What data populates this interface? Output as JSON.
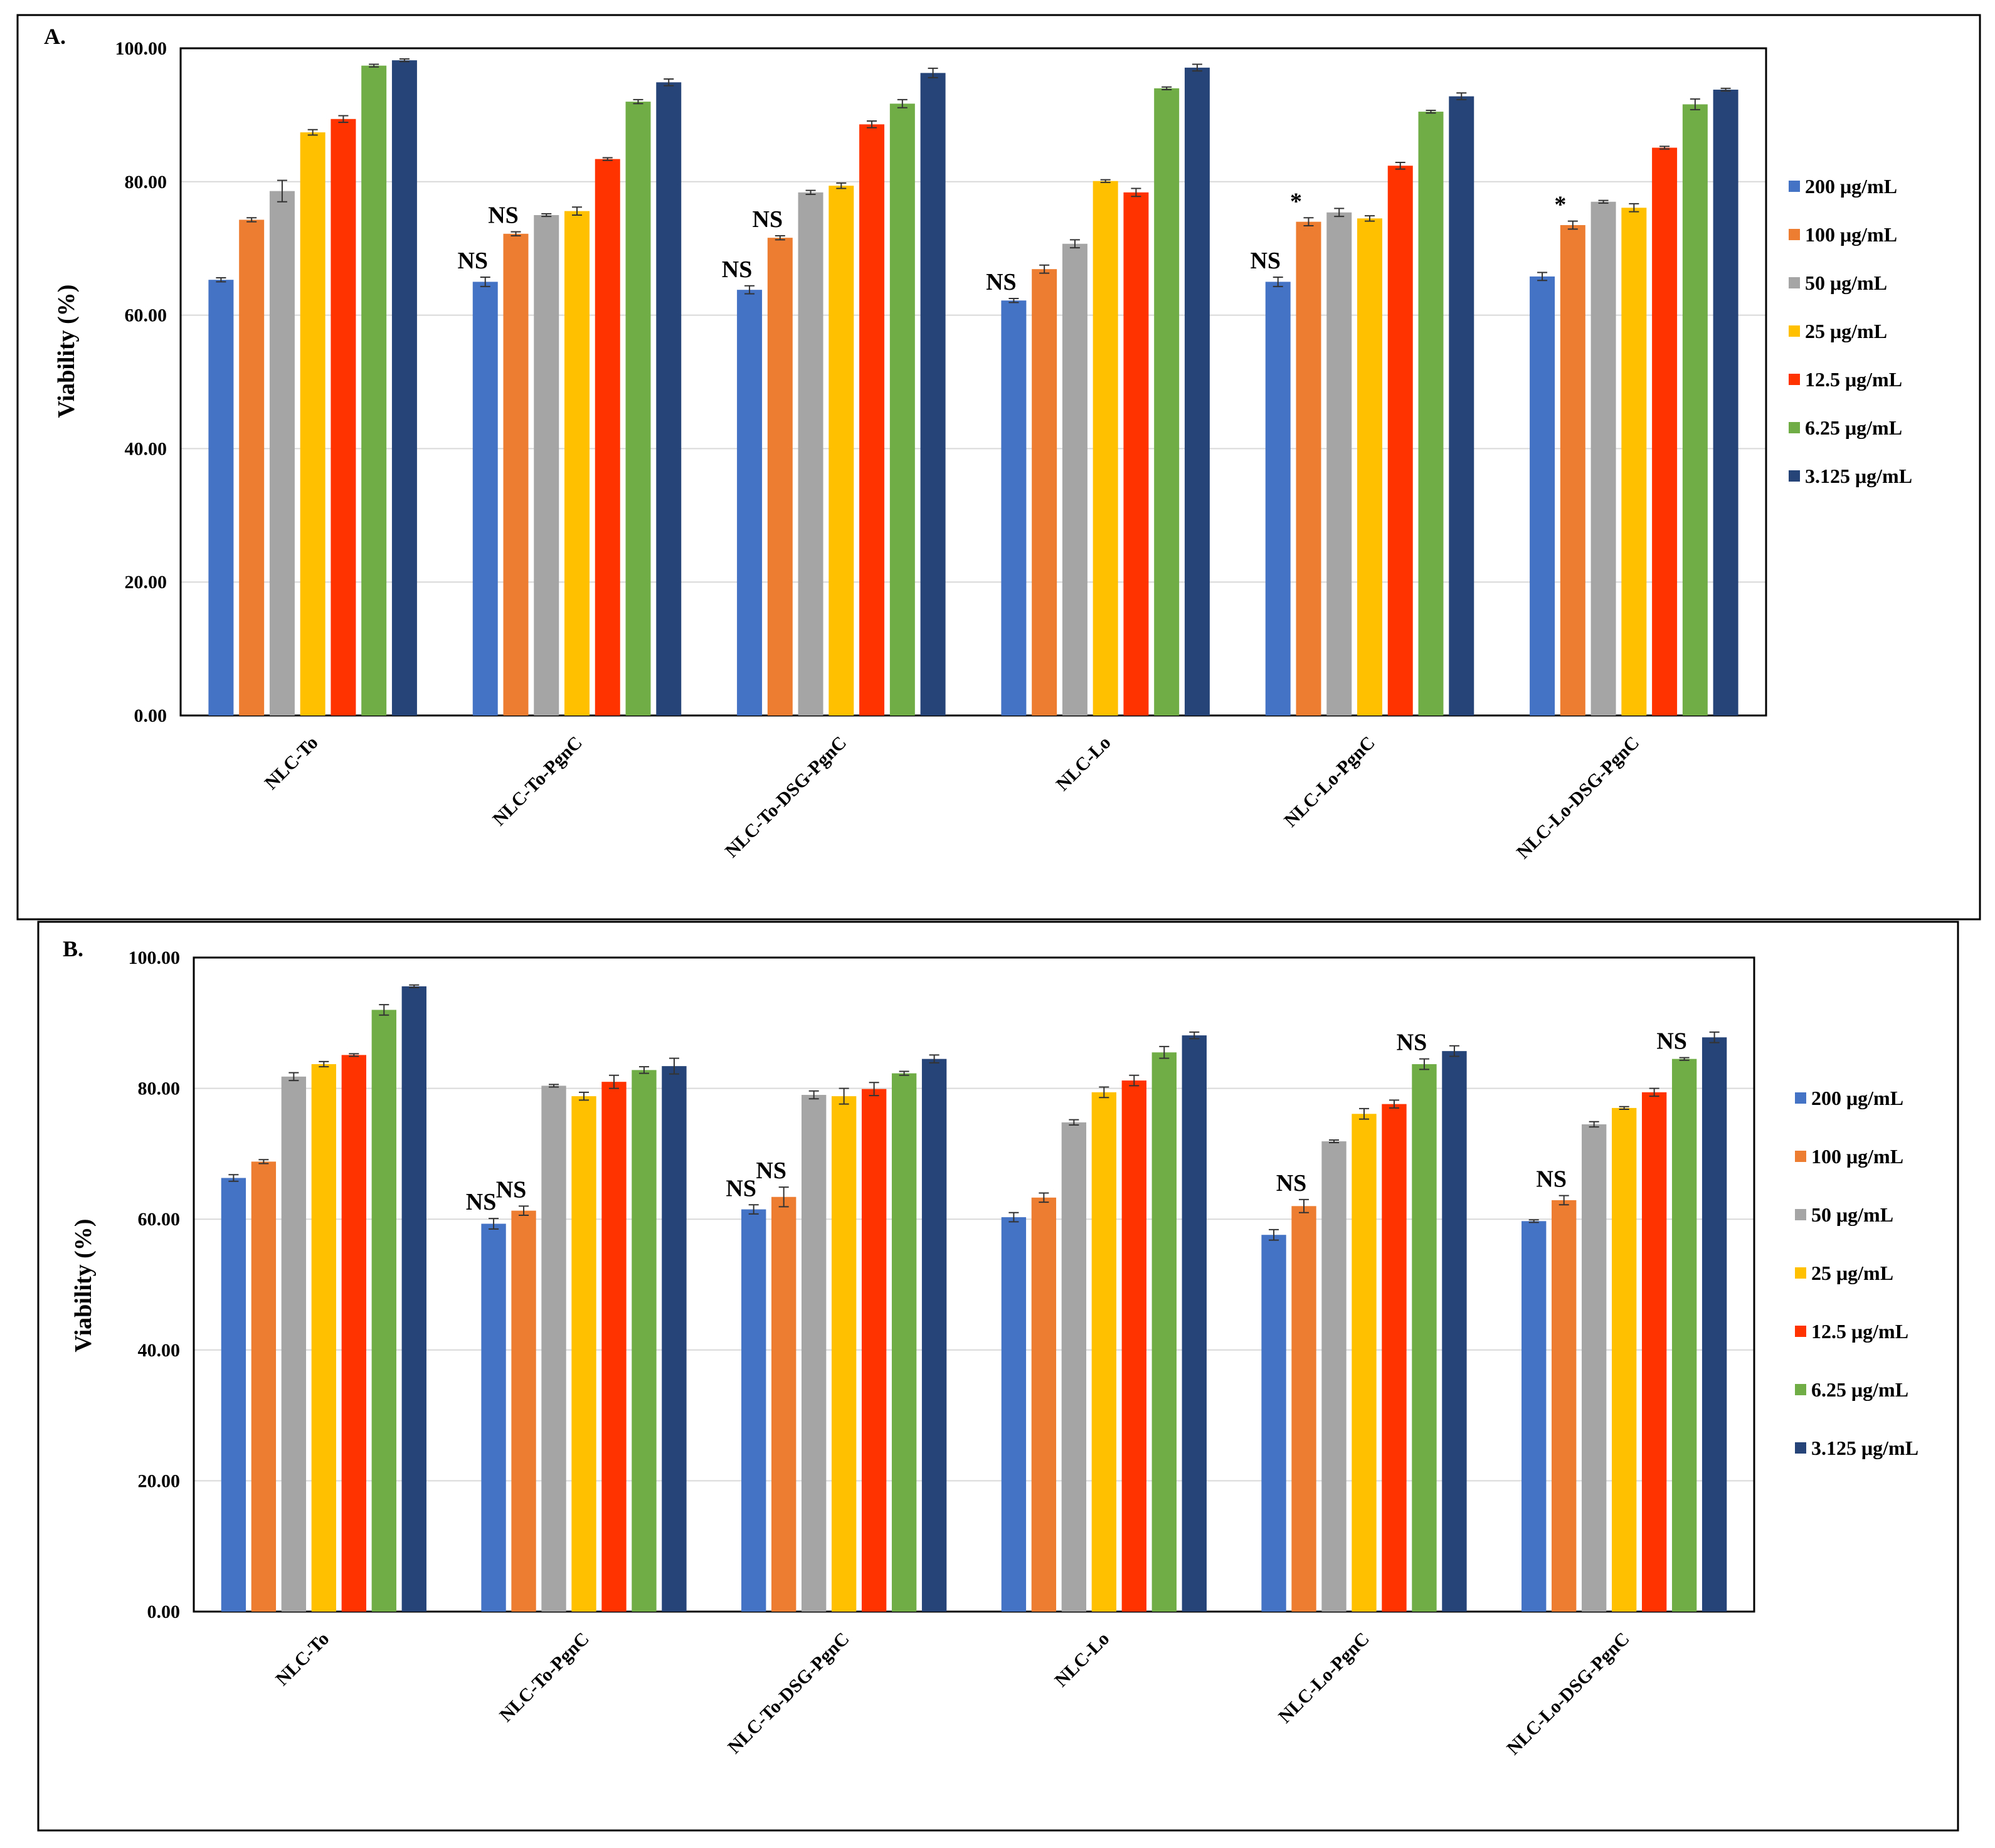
{
  "chart_data": [
    {
      "type": "bar",
      "panel_label": "A.",
      "ylabel": "Viability (%)",
      "categories": [
        "NLC-To",
        "NLC-To-PgnC",
        "NLC-To-DSG-PgnC",
        "NLC-Lo",
        "NLC-Lo-PgnC",
        "NLC-Lo-DSG-PgnC"
      ],
      "ylim": [
        0,
        100
      ],
      "yticks": [
        {
          "value": 0,
          "label": "0.00"
        },
        {
          "value": 20,
          "label": "20.00"
        },
        {
          "value": 40,
          "label": "40.00"
        },
        {
          "value": 60,
          "label": "60.00"
        },
        {
          "value": 80,
          "label": "80.00"
        },
        {
          "value": 100,
          "label": "100.00"
        }
      ],
      "grid": true,
      "legend": "right",
      "series": [
        {
          "name": "200 μg/mL",
          "color": "#4472c4",
          "values": [
            65.3,
            65.0,
            63.8,
            62.2,
            65.0,
            65.8
          ],
          "errors": [
            0.3,
            0.7,
            0.6,
            0.3,
            0.7,
            0.6
          ],
          "annotations": [
            null,
            "NS",
            "NS",
            "NS",
            "NS",
            null
          ]
        },
        {
          "name": "100 μg/mL",
          "color": "#ed7d31",
          "values": [
            74.3,
            72.2,
            71.6,
            66.9,
            74.0,
            73.5
          ],
          "errors": [
            0.3,
            0.3,
            0.3,
            0.6,
            0.6,
            0.6
          ],
          "annotations": [
            null,
            "NS",
            "NS",
            null,
            "*",
            "*"
          ]
        },
        {
          "name": "50 μg/mL",
          "color": "#a5a5a5",
          "values": [
            78.6,
            75.0,
            78.4,
            70.7,
            75.4,
            77.0
          ],
          "errors": [
            1.6,
            0.2,
            0.3,
            0.6,
            0.6,
            0.2
          ]
        },
        {
          "name": "25 μg/mL",
          "color": "#ffc000",
          "values": [
            87.4,
            75.6,
            79.4,
            80.1,
            74.5,
            76.1
          ],
          "errors": [
            0.4,
            0.6,
            0.4,
            0.2,
            0.4,
            0.6
          ]
        },
        {
          "name": "12.5 μg/mL",
          "color": "#ff3300",
          "values": [
            89.4,
            83.4,
            88.6,
            78.4,
            82.4,
            85.1
          ],
          "errors": [
            0.5,
            0.2,
            0.5,
            0.6,
            0.5,
            0.2
          ]
        },
        {
          "name": "6.25 μg/mL",
          "color": "#70ad47",
          "values": [
            97.4,
            92.0,
            91.7,
            94.0,
            90.5,
            91.6
          ],
          "errors": [
            0.2,
            0.3,
            0.6,
            0.2,
            0.2,
            0.8
          ]
        },
        {
          "name": "3.125 μg/mL",
          "color": "#264478",
          "values": [
            98.2,
            94.9,
            96.3,
            97.1,
            92.8,
            93.8
          ],
          "errors": [
            0.2,
            0.5,
            0.7,
            0.5,
            0.5,
            0.2
          ]
        }
      ]
    },
    {
      "type": "bar",
      "panel_label": "B.",
      "ylabel": "Viability (%)",
      "categories": [
        "NLC-To",
        "NLC-To-PgnC",
        "NLC-To-DSG-PgnC",
        "NLC-Lo",
        "NLC-Lo-PgnC",
        "NLC-Lo-DSG-PgnC"
      ],
      "ylim": [
        0,
        100
      ],
      "yticks": [
        {
          "value": 0,
          "label": "0.00"
        },
        {
          "value": 20,
          "label": "20.00"
        },
        {
          "value": 40,
          "label": "40.00"
        },
        {
          "value": 60,
          "label": "60.00"
        },
        {
          "value": 80,
          "label": "80.00"
        },
        {
          "value": 100,
          "label": "100.00"
        }
      ],
      "grid": true,
      "legend": "right",
      "series": [
        {
          "name": "200 μg/mL",
          "color": "#4472c4",
          "values": [
            66.3,
            59.3,
            61.5,
            60.3,
            57.6,
            59.7
          ],
          "errors": [
            0.5,
            0.8,
            0.7,
            0.7,
            0.8,
            0.2
          ],
          "annotations": [
            null,
            "NS",
            "NS",
            null,
            null,
            null
          ]
        },
        {
          "name": "100 μg/mL",
          "color": "#ed7d31",
          "values": [
            68.8,
            61.3,
            63.4,
            63.3,
            62.0,
            62.9
          ],
          "errors": [
            0.3,
            0.7,
            1.5,
            0.7,
            1.0,
            0.7
          ],
          "annotations": [
            null,
            "NS",
            "NS",
            null,
            "NS",
            "NS"
          ]
        },
        {
          "name": "50 μg/mL",
          "color": "#a5a5a5",
          "values": [
            81.8,
            80.4,
            79.0,
            74.8,
            71.9,
            74.5
          ],
          "errors": [
            0.6,
            0.2,
            0.6,
            0.4,
            0.2,
            0.4
          ]
        },
        {
          "name": "25 μg/mL",
          "color": "#ffc000",
          "values": [
            83.7,
            78.8,
            78.8,
            79.4,
            76.1,
            77.0
          ],
          "errors": [
            0.4,
            0.6,
            1.2,
            0.8,
            0.8,
            0.2
          ]
        },
        {
          "name": "12.5 μg/mL",
          "color": "#ff3300",
          "values": [
            85.1,
            81.0,
            79.9,
            81.2,
            77.6,
            79.4
          ],
          "errors": [
            0.2,
            1.0,
            1.0,
            0.8,
            0.6,
            0.6
          ]
        },
        {
          "name": "6.25 μg/mL",
          "color": "#70ad47",
          "values": [
            92.0,
            82.8,
            82.3,
            85.5,
            83.7,
            84.5
          ],
          "errors": [
            0.8,
            0.5,
            0.3,
            0.9,
            0.8,
            0.2
          ],
          "annotations": [
            null,
            null,
            null,
            null,
            "NS",
            "NS"
          ]
        },
        {
          "name": "3.125 μg/mL",
          "color": "#264478",
          "values": [
            95.6,
            83.4,
            84.5,
            88.1,
            85.7,
            87.8
          ],
          "errors": [
            0.2,
            1.2,
            0.6,
            0.5,
            0.8,
            0.8
          ]
        }
      ]
    }
  ]
}
